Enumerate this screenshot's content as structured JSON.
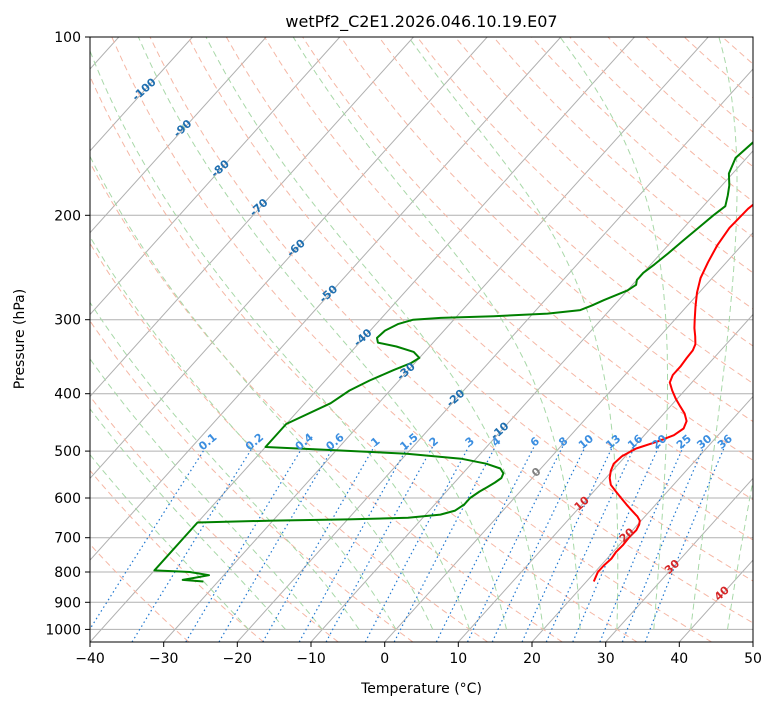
{
  "chart_data": {
    "type": "line",
    "subtype": "skew-t log-p diagram",
    "title": "wetPf2_C2E1.2026.046.10.19.E07",
    "xlabel": "Temperature (°C)",
    "ylabel": "Pressure (hPa)",
    "xlim": [
      -40,
      50
    ],
    "ylim": [
      1050,
      100
    ],
    "yscale": "log",
    "x_ticks": [
      -40,
      -30,
      -20,
      -10,
      0,
      10,
      20,
      30,
      40,
      50
    ],
    "x_tick_labels": [
      "−40",
      "−30",
      "−20",
      "−10",
      "0",
      "10",
      "20",
      "30",
      "40",
      "50"
    ],
    "y_ticks": [
      100,
      200,
      300,
      400,
      500,
      600,
      700,
      800,
      900,
      1000
    ],
    "y_tick_labels": [
      "100",
      "200",
      "300",
      "400",
      "500",
      "600",
      "700",
      "800",
      "900",
      "1000"
    ],
    "grid": true,
    "colors": {
      "temperature": "#ff0000",
      "dewpoint": "#008000",
      "isotherm": "#b0b0b0",
      "isobar": "#b0b0b0",
      "dry_adiabat": "#f5b7a5",
      "moist_adiabat": "#a8d8a8",
      "mixing_ratio": "#1f77d0",
      "isotherm_label": "#1f6fb0",
      "temp_label": "#d62728"
    },
    "series": [
      {
        "key": "temperature",
        "points": [
          [
            21,
            830
          ],
          [
            20.7,
            815
          ],
          [
            20.4,
            800
          ],
          [
            20.4,
            780
          ],
          [
            20.6,
            760
          ],
          [
            20.4,
            740
          ],
          [
            20.5,
            720
          ],
          [
            20.4,
            700
          ],
          [
            20.5,
            680
          ],
          [
            20.2,
            665
          ],
          [
            19.8,
            655
          ],
          [
            19.0,
            645
          ],
          [
            17.5,
            630
          ],
          [
            16.0,
            615
          ],
          [
            14.5,
            600
          ],
          [
            13.0,
            585
          ],
          [
            11.5,
            570
          ],
          [
            10.5,
            555
          ],
          [
            9.8,
            540
          ],
          [
            9.3,
            525
          ],
          [
            9.5,
            510
          ],
          [
            10.5,
            495
          ],
          [
            12.5,
            482
          ],
          [
            14.0,
            470
          ],
          [
            14.5,
            458
          ],
          [
            14.0,
            445
          ],
          [
            12.8,
            432
          ],
          [
            11.3,
            420
          ],
          [
            9.8,
            408
          ],
          [
            8.3,
            395
          ],
          [
            7.0,
            383
          ],
          [
            6.5,
            372
          ],
          [
            6.5,
            360
          ],
          [
            6.3,
            348
          ],
          [
            6.2,
            338
          ],
          [
            5.8,
            330
          ],
          [
            4.8,
            320
          ],
          [
            3.7,
            310
          ],
          [
            2.7,
            300
          ],
          [
            1.2,
            285
          ],
          [
            -0.3,
            270
          ],
          [
            -1.6,
            255
          ],
          [
            -2.5,
            240
          ],
          [
            -3.3,
            225
          ],
          [
            -3.8,
            210
          ],
          [
            -3.6,
            195
          ],
          [
            -3.0,
            185
          ],
          [
            -1.5,
            175
          ],
          [
            0.5,
            167
          ],
          [
            2.0,
            160
          ],
          [
            3.0,
            150
          ],
          [
            3.8,
            140
          ],
          [
            5.0,
            130
          ],
          [
            6.5,
            122
          ],
          [
            8.5,
            115
          ],
          [
            10.0,
            108
          ],
          [
            11.0,
            100
          ]
        ]
      },
      {
        "key": "dewpoint",
        "points": [
          [
            -32,
            830
          ],
          [
            -35,
            825
          ],
          [
            -34,
            820
          ],
          [
            -32,
            810
          ],
          [
            -35,
            800
          ],
          [
            -40,
            795
          ],
          [
            -40,
            660
          ],
          [
            -30,
            655
          ],
          [
            -20,
            652
          ],
          [
            -12,
            648
          ],
          [
            -8,
            640
          ],
          [
            -6.5,
            630
          ],
          [
            -6.0,
            615
          ],
          [
            -6.0,
            600
          ],
          [
            -5.5,
            585
          ],
          [
            -5.0,
            575
          ],
          [
            -4.5,
            565
          ],
          [
            -4.2,
            555
          ],
          [
            -4.5,
            545
          ],
          [
            -5.5,
            535
          ],
          [
            -8.0,
            525
          ],
          [
            -12.0,
            515
          ],
          [
            -20.0,
            505
          ],
          [
            -32.0,
            497
          ],
          [
            -40.0,
            492
          ],
          [
            -40,
            450
          ],
          [
            -36.5,
            415
          ],
          [
            -35.5,
            395
          ],
          [
            -34.0,
            380
          ],
          [
            -32.0,
            365
          ],
          [
            -30.5,
            355
          ],
          [
            -30.0,
            348
          ],
          [
            -31.5,
            340
          ],
          [
            -34.5,
            333
          ],
          [
            -37.5,
            328
          ],
          [
            -38.2,
            322
          ],
          [
            -38.0,
            313
          ],
          [
            -37.0,
            305
          ],
          [
            -35.5,
            300
          ],
          [
            -32.0,
            298
          ],
          [
            -25.0,
            296
          ],
          [
            -18.0,
            293
          ],
          [
            -14.0,
            289
          ],
          [
            -13.0,
            284
          ],
          [
            -12.0,
            278
          ],
          [
            -10.0,
            268
          ],
          [
            -9.5,
            262
          ],
          [
            -10.0,
            257
          ],
          [
            -10.0,
            250
          ],
          [
            -9.5,
            242
          ],
          [
            -9.0,
            232
          ],
          [
            -8.5,
            220
          ],
          [
            -8.0,
            210
          ],
          [
            -7.5,
            200
          ],
          [
            -7.0,
            193
          ],
          [
            -8.0,
            185
          ],
          [
            -9.0,
            178
          ],
          [
            -10.5,
            170
          ],
          [
            -11.5,
            160
          ],
          [
            -11.0,
            150
          ],
          [
            -8.0,
            140
          ],
          [
            -5.0,
            130
          ],
          [
            -2.0,
            120
          ],
          [
            1.0,
            110
          ],
          [
            5.0,
            100
          ]
        ]
      }
    ],
    "isotherm_labels": [
      "-100",
      "-90",
      "-80",
      "-70",
      "-60",
      "-50",
      "-40",
      "-30",
      "-20",
      "-10",
      "0",
      "10",
      "20",
      "30",
      "40"
    ],
    "mixing_ratio_labels": [
      "0.1",
      "0.2",
      "0.4",
      "0.6",
      "1",
      "1.5",
      "2",
      "3",
      "4",
      "6",
      "8",
      "10",
      "13",
      "16",
      "20",
      "25",
      "30",
      "36"
    ]
  }
}
